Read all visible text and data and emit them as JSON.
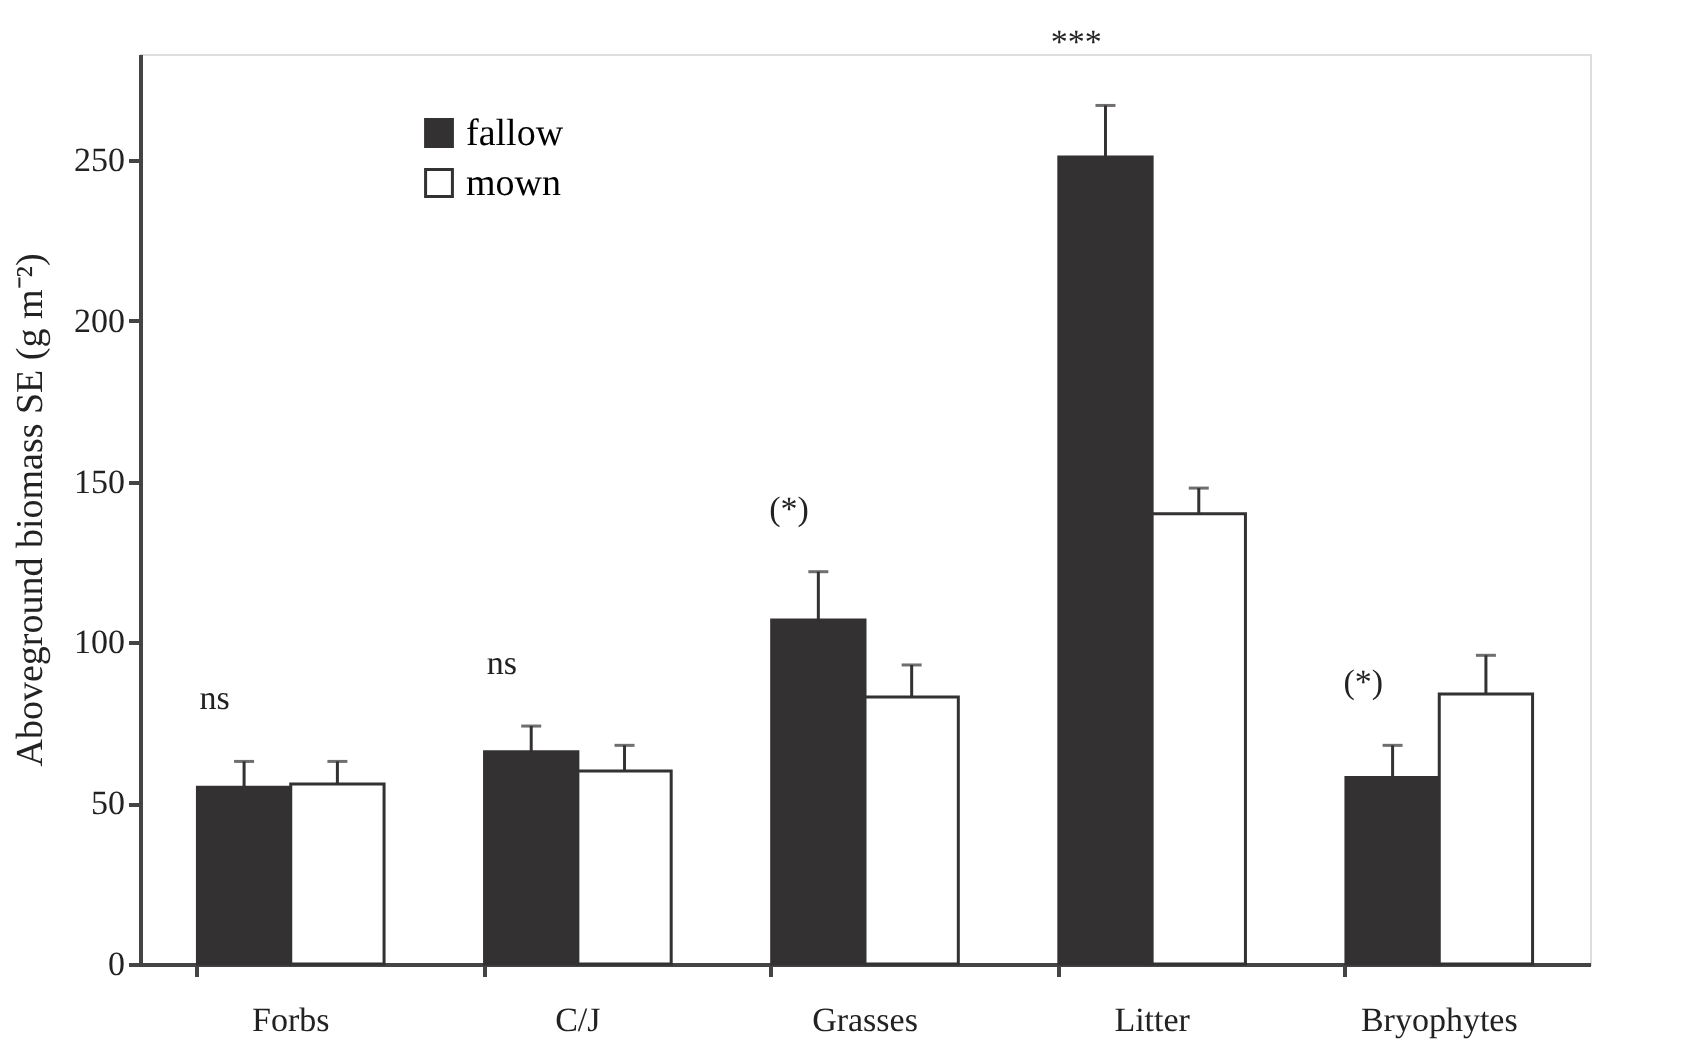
{
  "chart_data": {
    "type": "bar",
    "ylabel": "Aboveground biomass SE (g m⁻²)",
    "categories": [
      "Forbs",
      "C/J",
      "Grasses",
      "Litter",
      "Bryophytes"
    ],
    "series": [
      {
        "name": "fallow",
        "color": "#333132",
        "values": [
          55,
          66,
          107,
          251,
          58
        ],
        "errors": [
          8,
          8,
          15,
          16,
          10
        ]
      },
      {
        "name": "mown",
        "color": "#ffffff",
        "values": [
          56,
          60,
          83,
          140,
          84
        ],
        "errors": [
          7,
          8,
          10,
          8,
          12
        ]
      }
    ],
    "ylim": [
      0,
      283
    ],
    "yticks": [
      0,
      50,
      100,
      150,
      200,
      250
    ],
    "grid": false,
    "legend": "top left",
    "annotations": [
      "ns",
      "ns",
      "(*)",
      "***",
      "(*)"
    ]
  }
}
